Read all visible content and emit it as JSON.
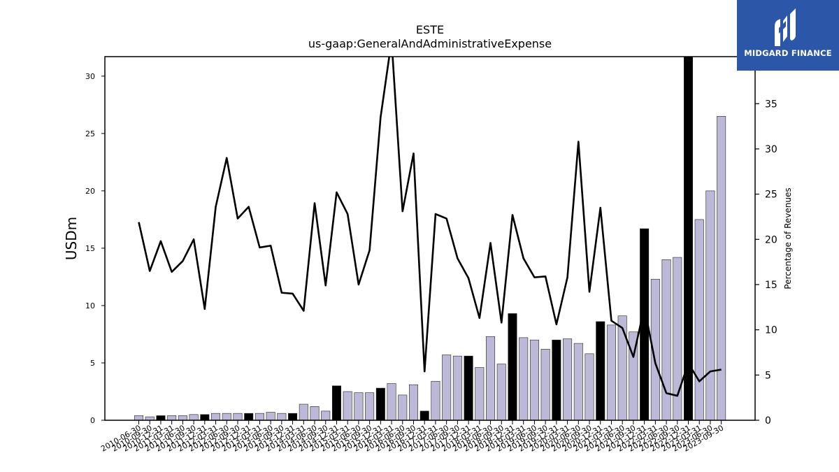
{
  "header": {
    "title": "ESTE",
    "subtitle": "us-gaap:GeneralAndAdministrativeExpense"
  },
  "logo": {
    "text": "MIDGARD FINANCE",
    "background": "#2c56a8"
  },
  "chart_data": {
    "type": "bar",
    "ylabel_left": "USDm",
    "ylabel_right": "Percentage of Revenues",
    "ylim_left": [
      0,
      31.7
    ],
    "ylim_right": [
      0,
      40.2
    ],
    "yticks_left": [
      0,
      5,
      10,
      15,
      20,
      25,
      30
    ],
    "yticks_right": [
      0,
      5,
      10,
      15,
      20,
      25,
      30,
      35
    ],
    "categories": [
      "2010-06-30",
      "2010-09-30",
      "2010-12-31",
      "2011-03-31",
      "2011-06-30",
      "2011-09-30",
      "2011-12-31",
      "2012-03-31",
      "2012-06-30",
      "2012-09-30",
      "2012-12-31",
      "2013-03-31",
      "2013-06-30",
      "2013-09-30",
      "2013-12-31",
      "2014-03-31",
      "2014-06-30",
      "2014-09-30",
      "2014-12-31",
      "2015-03-31",
      "2015-06-30",
      "2015-09-30",
      "2015-12-31",
      "2016-03-31",
      "2016-06-30",
      "2016-09-30",
      "2016-12-31",
      "2017-03-31",
      "2017-06-30",
      "2017-09-30",
      "2017-12-31",
      "2018-03-31",
      "2018-06-30",
      "2018-09-30",
      "2018-12-31",
      "2019-03-31",
      "2019-06-30",
      "2019-09-30",
      "2019-12-31",
      "2020-03-31",
      "2020-06-30",
      "2020-09-30",
      "2020-12-31",
      "2021-03-31",
      "2021-06-30",
      "2021-09-30",
      "2021-12-31",
      "2022-03-31",
      "2022-06-30",
      "2022-09-30",
      "2022-12-31",
      "2023-03-31",
      "2023-06-30",
      "2023-09-30"
    ],
    "highlighted_categories": [
      "2010-12-31",
      "2011-12-31",
      "2012-12-31",
      "2013-12-31",
      "2014-12-31",
      "2015-12-31",
      "2016-12-31",
      "2017-12-31",
      "2018-12-31",
      "2019-12-31",
      "2020-12-31",
      "2021-12-31",
      "2022-12-31"
    ],
    "series": [
      {
        "type": "bar",
        "axis": "left",
        "values": [
          0.4,
          0.3,
          0.4,
          0.4,
          0.4,
          0.5,
          0.5,
          0.6,
          0.6,
          0.6,
          0.6,
          0.6,
          0.7,
          0.6,
          0.6,
          1.4,
          1.2,
          0.8,
          3.0,
          2.5,
          2.4,
          2.4,
          2.8,
          3.2,
          2.2,
          3.1,
          0.8,
          3.4,
          5.7,
          5.6,
          5.6,
          4.6,
          7.3,
          4.9,
          9.3,
          7.2,
          7.0,
          6.2,
          7.0,
          7.1,
          6.7,
          5.8,
          8.6,
          8.3,
          9.1,
          7.7,
          16.7,
          12.3,
          14.0,
          14.2,
          31.7,
          17.5,
          20.0,
          26.5
        ],
        "colors": {
          "regular": "#bcb9d8",
          "highlighted": "#000000",
          "edge": "#222222"
        }
      },
      {
        "type": "line",
        "axis": "right",
        "values": [
          21.9,
          16.5,
          19.8,
          16.4,
          17.6,
          20.0,
          12.3,
          23.6,
          29.0,
          22.3,
          23.6,
          19.1,
          19.3,
          14.1,
          14.0,
          12.1,
          24.0,
          14.9,
          25.2,
          22.8,
          15.0,
          18.8,
          33.5,
          42.0,
          23.1,
          29.5,
          5.4,
          22.8,
          22.3,
          17.9,
          15.7,
          11.3,
          19.6,
          10.8,
          22.7,
          17.9,
          15.8,
          15.9,
          10.6,
          15.8,
          30.8,
          14.2,
          23.5,
          11.0,
          10.2,
          7.0,
          12.5,
          6.3,
          3.0,
          2.7,
          6.3,
          4.3,
          5.4,
          5.6
        ],
        "color": "#000000"
      }
    ]
  }
}
